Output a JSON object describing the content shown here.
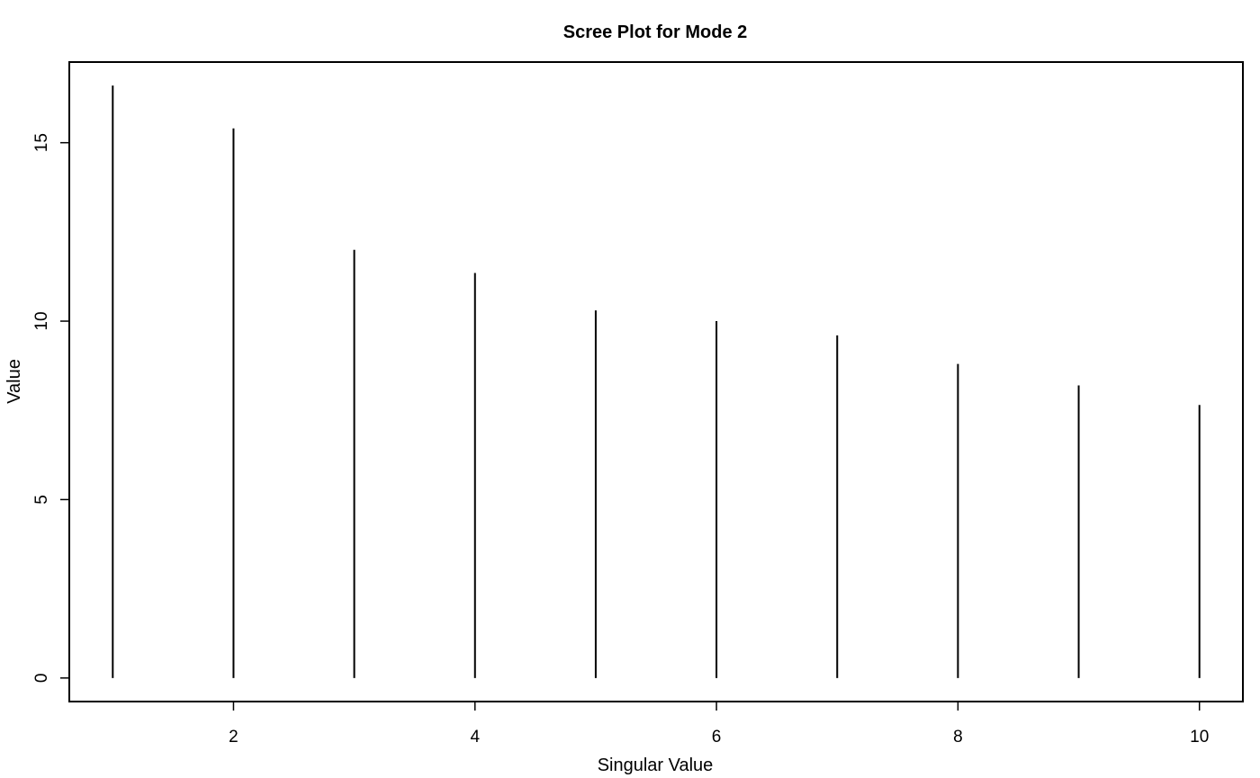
{
  "chart_data": {
    "type": "line",
    "subtype": "histogram-stems",
    "title": "Scree Plot for Mode 2",
    "xlabel": "Singular Value",
    "ylabel": "Value",
    "x": [
      1,
      2,
      3,
      4,
      5,
      6,
      7,
      8,
      9,
      10
    ],
    "values": [
      16.6,
      15.4,
      12.0,
      11.35,
      10.3,
      10.0,
      9.6,
      8.8,
      8.2,
      7.65
    ],
    "xlim": [
      0.64,
      10.36
    ],
    "ylim": [
      -0.66,
      17.26
    ],
    "x_ticks": [
      2,
      4,
      6,
      8,
      10
    ],
    "y_ticks": [
      0,
      5,
      10,
      15
    ],
    "grid": false,
    "legend": "none",
    "color": "#000000"
  }
}
